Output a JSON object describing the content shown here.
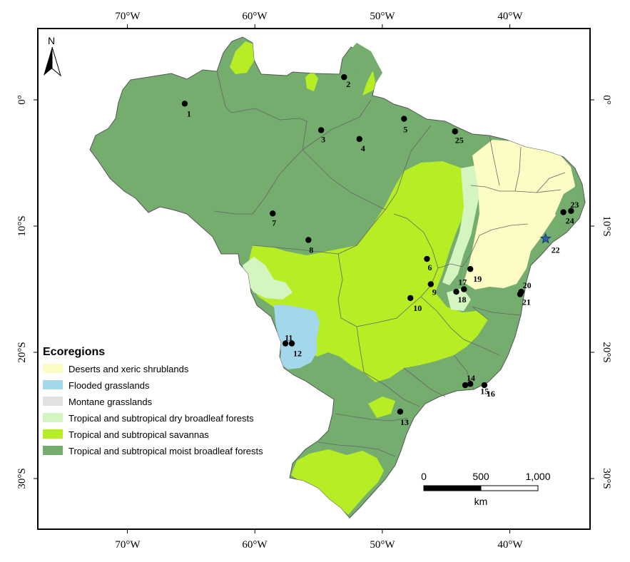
{
  "axes": {
    "top": [
      "70°W",
      "60°W",
      "50°W",
      "40°W"
    ],
    "bottom": [
      "70°W",
      "60°W",
      "50°W",
      "40°W"
    ],
    "left": [
      "0°",
      "10°S",
      "20°S",
      "30°S"
    ],
    "right": [
      "0°",
      "10°S",
      "20°S",
      "30°S"
    ]
  },
  "north_arrow": {
    "label": "N"
  },
  "colors": {
    "moist": "#75ad6e",
    "savanna": "#b6ed24",
    "dry": "#d5f5c0",
    "desert": "#fefcc5",
    "flooded": "#a3d8ec",
    "montane": "#e1e1e1",
    "star": "#2f5fa8"
  },
  "legend": {
    "title": "Ecoregions",
    "items": [
      {
        "label": "Deserts and xeric shrublands",
        "color": "#fefcc5"
      },
      {
        "label": "Flooded grasslands",
        "color": "#a3d8ec"
      },
      {
        "label": "Montane grasslands",
        "color": "#e1e1e1"
      },
      {
        "label": "Tropical and subtropical dry broadleaf forests",
        "color": "#d5f5c0"
      },
      {
        "label": "Tropical and subtropical savannas",
        "color": "#b6ed24"
      },
      {
        "label": "Tropical and subtropical moist broadleaf forests",
        "color": "#75ad6e"
      }
    ]
  },
  "scale_bar": {
    "ticks": [
      "0",
      "500",
      "1,000"
    ],
    "unit": "km"
  },
  "sites": [
    {
      "id": "1",
      "lon": -65.5,
      "lat": -0.3
    },
    {
      "id": "2",
      "lon": -53.0,
      "lat": 1.8
    },
    {
      "id": "3",
      "lon": -54.8,
      "lat": -2.4
    },
    {
      "id": "4",
      "lon": -51.8,
      "lat": -3.1
    },
    {
      "id": "5",
      "lon": -48.3,
      "lat": -1.5
    },
    {
      "id": "6",
      "lon": -46.5,
      "lat": -12.6
    },
    {
      "id": "7",
      "lon": -58.6,
      "lat": -9.0
    },
    {
      "id": "8",
      "lon": -55.8,
      "lat": -11.1
    },
    {
      "id": "9",
      "lon": -46.2,
      "lat": -14.6
    },
    {
      "id": "10",
      "lon": -47.8,
      "lat": -15.7
    },
    {
      "id": "11",
      "lon": -57.6,
      "lat": -19.3
    },
    {
      "id": "12",
      "lon": -57.1,
      "lat": -19.3
    },
    {
      "id": "13",
      "lon": -48.6,
      "lat": -24.7
    },
    {
      "id": "14",
      "lon": -43.5,
      "lat": -22.6
    },
    {
      "id": "15",
      "lon": -43.1,
      "lat": -22.5
    },
    {
      "id": "16",
      "lon": -42.0,
      "lat": -22.6
    },
    {
      "id": "17",
      "lon": -43.6,
      "lat": -15.0
    },
    {
      "id": "18",
      "lon": -44.2,
      "lat": -15.2
    },
    {
      "id": "19",
      "lon": -43.1,
      "lat": -13.4
    },
    {
      "id": "20",
      "lon": -39.1,
      "lat": -15.2
    },
    {
      "id": "21",
      "lon": -39.2,
      "lat": -15.4
    },
    {
      "id": "23",
      "lon": -35.2,
      "lat": -8.8
    },
    {
      "id": "24",
      "lon": -35.8,
      "lat": -8.9
    },
    {
      "id": "25",
      "lon": -44.3,
      "lat": -2.5
    }
  ],
  "star_site": {
    "id": "22",
    "lon": -37.2,
    "lat": -11.0
  }
}
